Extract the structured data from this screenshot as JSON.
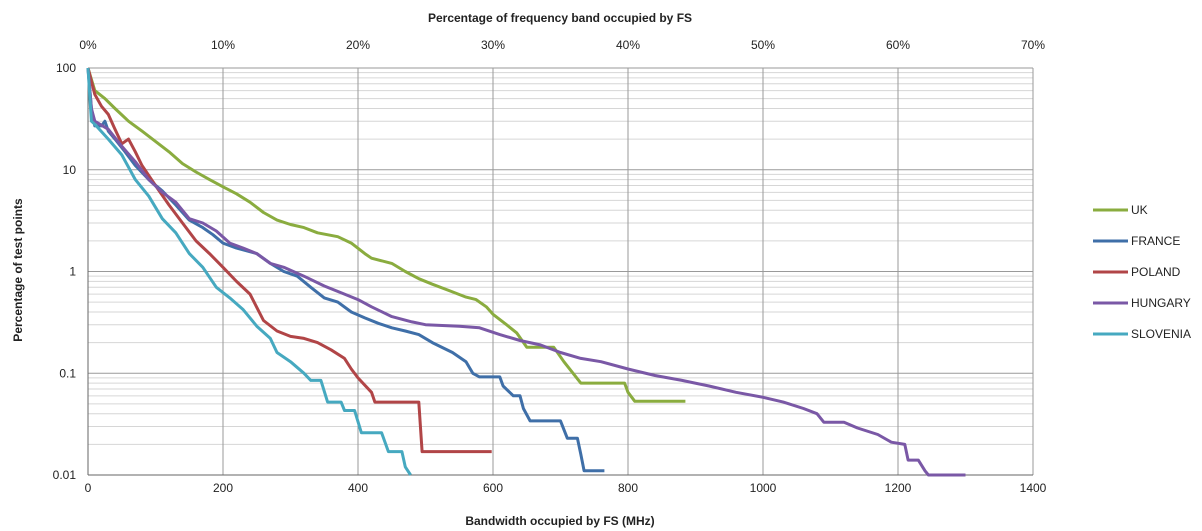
{
  "chart_data": {
    "type": "line",
    "title": "",
    "xlabel": "Bandwidth occupied by FS (MHz)",
    "x2label": "Percentage of frequency band occupied by FS",
    "ylabel": "Percentage of test points",
    "xlim": [
      0,
      1400
    ],
    "x_ticks": [
      0,
      200,
      400,
      600,
      800,
      1000,
      1200,
      1400
    ],
    "x_tick_labels": [
      "0",
      "200",
      "400",
      "600",
      "800",
      "1000",
      "1200",
      "1400"
    ],
    "x2lim": [
      0,
      70
    ],
    "x2_ticks": [
      0,
      10,
      20,
      30,
      40,
      50,
      60,
      70
    ],
    "x2_tick_labels": [
      "0%",
      "10%",
      "20%",
      "30%",
      "40%",
      "50%",
      "60%",
      "70%"
    ],
    "ylim": [
      0.01,
      100
    ],
    "y_scale": "log",
    "y_ticks": [
      0.01,
      0.1,
      1,
      10,
      100
    ],
    "y_tick_labels": [
      "0.01",
      "0.1",
      "1",
      "10",
      "100"
    ],
    "grid": true,
    "legend_position": "right",
    "series": [
      {
        "name": "UK",
        "color": "#8aac3f",
        "points": [
          [
            0,
            100
          ],
          [
            10,
            60
          ],
          [
            25,
            50
          ],
          [
            40,
            40
          ],
          [
            60,
            30
          ],
          [
            80,
            24
          ],
          [
            100,
            19
          ],
          [
            120,
            15
          ],
          [
            140,
            11.5
          ],
          [
            160,
            9.5
          ],
          [
            180,
            8
          ],
          [
            200,
            6.8
          ],
          [
            220,
            5.8
          ],
          [
            240,
            4.8
          ],
          [
            260,
            3.8
          ],
          [
            280,
            3.2
          ],
          [
            300,
            2.9
          ],
          [
            320,
            2.7
          ],
          [
            340,
            2.4
          ],
          [
            370,
            2.2
          ],
          [
            390,
            1.9
          ],
          [
            410,
            1.5
          ],
          [
            420,
            1.35
          ],
          [
            450,
            1.2
          ],
          [
            470,
            1.0
          ],
          [
            490,
            0.85
          ],
          [
            510,
            0.75
          ],
          [
            540,
            0.63
          ],
          [
            560,
            0.56
          ],
          [
            575,
            0.53
          ],
          [
            590,
            0.45
          ],
          [
            600,
            0.38
          ],
          [
            620,
            0.3
          ],
          [
            635,
            0.25
          ],
          [
            650,
            0.18
          ],
          [
            690,
            0.18
          ],
          [
            705,
            0.13
          ],
          [
            730,
            0.08
          ],
          [
            795,
            0.08
          ],
          [
            800,
            0.065
          ],
          [
            810,
            0.053
          ],
          [
            885,
            0.053
          ]
        ]
      },
      {
        "name": "FRANCE",
        "color": "#3f6fa8",
        "points": [
          [
            0,
            100
          ],
          [
            5,
            40
          ],
          [
            10,
            27
          ],
          [
            20,
            27
          ],
          [
            25,
            30
          ],
          [
            30,
            24
          ],
          [
            40,
            20
          ],
          [
            55,
            15
          ],
          [
            70,
            11
          ],
          [
            90,
            8
          ],
          [
            110,
            6.2
          ],
          [
            130,
            4.5
          ],
          [
            150,
            3.2
          ],
          [
            170,
            2.7
          ],
          [
            185,
            2.3
          ],
          [
            200,
            1.9
          ],
          [
            220,
            1.7
          ],
          [
            250,
            1.5
          ],
          [
            270,
            1.2
          ],
          [
            290,
            1.0
          ],
          [
            310,
            0.9
          ],
          [
            330,
            0.7
          ],
          [
            350,
            0.55
          ],
          [
            370,
            0.5
          ],
          [
            390,
            0.4
          ],
          [
            410,
            0.35
          ],
          [
            430,
            0.31
          ],
          [
            450,
            0.28
          ],
          [
            470,
            0.26
          ],
          [
            490,
            0.24
          ],
          [
            510,
            0.2
          ],
          [
            540,
            0.16
          ],
          [
            560,
            0.13
          ],
          [
            570,
            0.1
          ],
          [
            580,
            0.092
          ],
          [
            610,
            0.092
          ],
          [
            615,
            0.075
          ],
          [
            630,
            0.06
          ],
          [
            640,
            0.06
          ],
          [
            645,
            0.045
          ],
          [
            655,
            0.034
          ],
          [
            700,
            0.034
          ],
          [
            710,
            0.023
          ],
          [
            725,
            0.023
          ],
          [
            730,
            0.016
          ],
          [
            735,
            0.011
          ],
          [
            765,
            0.011
          ]
        ]
      },
      {
        "name": "POLAND",
        "color": "#b14547",
        "points": [
          [
            0,
            100
          ],
          [
            10,
            55
          ],
          [
            20,
            42
          ],
          [
            30,
            35
          ],
          [
            40,
            25
          ],
          [
            50,
            18
          ],
          [
            60,
            20
          ],
          [
            70,
            15
          ],
          [
            80,
            11
          ],
          [
            100,
            7
          ],
          [
            120,
            4.5
          ],
          [
            140,
            3
          ],
          [
            160,
            2
          ],
          [
            180,
            1.5
          ],
          [
            200,
            1.1
          ],
          [
            220,
            0.8
          ],
          [
            240,
            0.6
          ],
          [
            260,
            0.33
          ],
          [
            280,
            0.26
          ],
          [
            300,
            0.23
          ],
          [
            320,
            0.22
          ],
          [
            340,
            0.2
          ],
          [
            360,
            0.17
          ],
          [
            380,
            0.14
          ],
          [
            390,
            0.11
          ],
          [
            400,
            0.09
          ],
          [
            420,
            0.065
          ],
          [
            425,
            0.052
          ],
          [
            490,
            0.052
          ],
          [
            495,
            0.017
          ],
          [
            598,
            0.017
          ]
        ]
      },
      {
        "name": "HUNGARY",
        "color": "#7a58a6",
        "points": [
          [
            0,
            100
          ],
          [
            5,
            40
          ],
          [
            10,
            30
          ],
          [
            30,
            25
          ],
          [
            50,
            17
          ],
          [
            70,
            12
          ],
          [
            90,
            8
          ],
          [
            110,
            6
          ],
          [
            130,
            4.8
          ],
          [
            150,
            3.3
          ],
          [
            170,
            3
          ],
          [
            190,
            2.5
          ],
          [
            210,
            1.9
          ],
          [
            230,
            1.7
          ],
          [
            250,
            1.5
          ],
          [
            270,
            1.2
          ],
          [
            290,
            1.1
          ],
          [
            320,
            0.9
          ],
          [
            350,
            0.72
          ],
          [
            380,
            0.6
          ],
          [
            400,
            0.53
          ],
          [
            420,
            0.45
          ],
          [
            450,
            0.36
          ],
          [
            480,
            0.32
          ],
          [
            500,
            0.3
          ],
          [
            550,
            0.29
          ],
          [
            580,
            0.28
          ],
          [
            610,
            0.24
          ],
          [
            640,
            0.21
          ],
          [
            670,
            0.19
          ],
          [
            700,
            0.16
          ],
          [
            730,
            0.14
          ],
          [
            760,
            0.13
          ],
          [
            800,
            0.11
          ],
          [
            840,
            0.095
          ],
          [
            880,
            0.085
          ],
          [
            920,
            0.075
          ],
          [
            960,
            0.065
          ],
          [
            1000,
            0.058
          ],
          [
            1030,
            0.052
          ],
          [
            1060,
            0.045
          ],
          [
            1080,
            0.04
          ],
          [
            1090,
            0.033
          ],
          [
            1120,
            0.033
          ],
          [
            1140,
            0.029
          ],
          [
            1170,
            0.025
          ],
          [
            1190,
            0.021
          ],
          [
            1210,
            0.02
          ],
          [
            1215,
            0.014
          ],
          [
            1230,
            0.014
          ],
          [
            1240,
            0.011
          ],
          [
            1245,
            0.01
          ],
          [
            1300,
            0.01
          ]
        ]
      },
      {
        "name": "SLOVENIA",
        "color": "#46a9c0",
        "points": [
          [
            0,
            100
          ],
          [
            5,
            30
          ],
          [
            10,
            28
          ],
          [
            30,
            20
          ],
          [
            50,
            14
          ],
          [
            70,
            8
          ],
          [
            90,
            5.5
          ],
          [
            110,
            3.3
          ],
          [
            130,
            2.4
          ],
          [
            150,
            1.5
          ],
          [
            170,
            1.1
          ],
          [
            190,
            0.7
          ],
          [
            210,
            0.55
          ],
          [
            230,
            0.42
          ],
          [
            250,
            0.29
          ],
          [
            270,
            0.22
          ],
          [
            280,
            0.16
          ],
          [
            300,
            0.13
          ],
          [
            320,
            0.1
          ],
          [
            330,
            0.085
          ],
          [
            345,
            0.085
          ],
          [
            355,
            0.052
          ],
          [
            375,
            0.052
          ],
          [
            380,
            0.043
          ],
          [
            395,
            0.043
          ],
          [
            405,
            0.026
          ],
          [
            435,
            0.026
          ],
          [
            445,
            0.017
          ],
          [
            465,
            0.017
          ],
          [
            470,
            0.012
          ],
          [
            478,
            0.01
          ]
        ]
      }
    ]
  }
}
